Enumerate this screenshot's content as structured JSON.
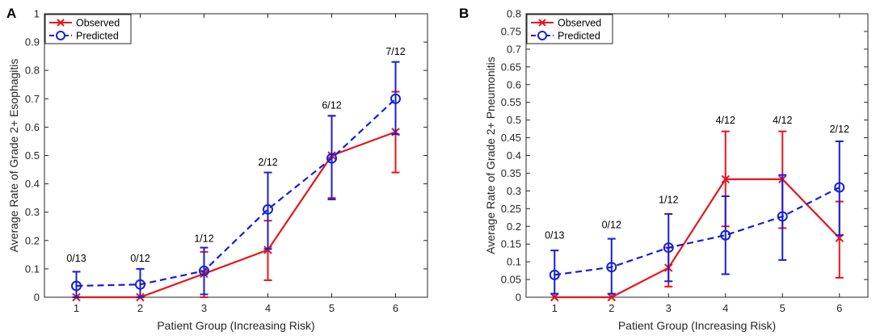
{
  "colors": {
    "observed": "#e8141c",
    "predicted": "#1420d8",
    "axis": "#262626",
    "background": "#ffffff"
  },
  "chart_data": [
    {
      "type": "line",
      "panel_label": "A",
      "xlabel": "Patient Group (Increasing Risk)",
      "ylabel": "Average Rate of Grade 2+ Esophagitis",
      "xlim": [
        0.5,
        6.5
      ],
      "ylim": [
        0,
        1
      ],
      "xticks": [
        1,
        2,
        3,
        4,
        5,
        6
      ],
      "yticks": [
        0,
        0.1,
        0.2,
        0.3,
        0.4,
        0.5,
        0.6,
        0.7,
        0.8,
        0.9,
        1
      ],
      "ytick_labels": [
        "0",
        "0.1",
        "0.2",
        "0.3",
        "0.4",
        "0.5",
        "0.6",
        "0.7",
        "0.8",
        "0.9",
        "1"
      ],
      "legend": {
        "position": "top-left",
        "entries": [
          "Observed",
          "Predicted"
        ]
      },
      "series": [
        {
          "name": "Observed",
          "marker": "x",
          "line": "solid",
          "x": [
            1,
            2,
            3,
            4,
            5,
            6
          ],
          "values": [
            0,
            0,
            0.083,
            0.167,
            0.5,
            0.583
          ],
          "err_low": [
            0,
            0,
            0,
            0.06,
            0.35,
            0.44
          ],
          "err_high": [
            0,
            0,
            0.16,
            0.27,
            0.64,
            0.725
          ]
        },
        {
          "name": "Predicted",
          "marker": "o",
          "line": "dashed",
          "x": [
            1,
            2,
            3,
            4,
            5,
            6
          ],
          "values": [
            0.04,
            0.045,
            0.093,
            0.31,
            0.49,
            0.7
          ],
          "err_low": [
            0,
            0,
            0.01,
            0.17,
            0.345,
            0.575
          ],
          "err_high": [
            0.09,
            0.1,
            0.175,
            0.44,
            0.64,
            0.83
          ]
        }
      ],
      "annotations": [
        {
          "x": 1,
          "y": 0.125,
          "text": "0/13"
        },
        {
          "x": 2,
          "y": 0.125,
          "text": "0/12"
        },
        {
          "x": 3,
          "y": 0.195,
          "text": "1/12"
        },
        {
          "x": 4,
          "y": 0.465,
          "text": "2/12"
        },
        {
          "x": 5,
          "y": 0.665,
          "text": "6/12"
        },
        {
          "x": 6,
          "y": 0.855,
          "text": "7/12"
        }
      ]
    },
    {
      "type": "line",
      "panel_label": "B",
      "xlabel": "Patient Group (Increasing Risk)",
      "ylabel": "Average Rate of Grade 2+ Pneumonitis",
      "xlim": [
        0.5,
        6.5
      ],
      "ylim": [
        0,
        0.8
      ],
      "xticks": [
        1,
        2,
        3,
        4,
        5,
        6
      ],
      "yticks": [
        0,
        0.05,
        0.1,
        0.15,
        0.2,
        0.25,
        0.3,
        0.35,
        0.4,
        0.45,
        0.5,
        0.55,
        0.6,
        0.65,
        0.7,
        0.75,
        0.8
      ],
      "ytick_labels": [
        "0",
        "0.05",
        "0.1",
        "0.15",
        "0.2",
        "0.25",
        "0.3",
        "0.35",
        "0.4",
        "0.45",
        "0.5",
        "0.55",
        "0.6",
        "0.65",
        "0.7",
        "0.75",
        "0.8"
      ],
      "legend": {
        "position": "top-left",
        "entries": [
          "Observed",
          "Predicted"
        ]
      },
      "series": [
        {
          "name": "Observed",
          "marker": "x",
          "line": "solid",
          "x": [
            1,
            2,
            3,
            4,
            5,
            6
          ],
          "values": [
            0,
            0,
            0.083,
            0.333,
            0.333,
            0.167
          ],
          "err_low": [
            0,
            0,
            0.03,
            0.2,
            0.195,
            0.055
          ],
          "err_high": [
            0,
            0,
            0.14,
            0.468,
            0.468,
            0.27
          ]
        },
        {
          "name": "Predicted",
          "marker": "o",
          "line": "dashed",
          "x": [
            1,
            2,
            3,
            4,
            5,
            6
          ],
          "values": [
            0.063,
            0.085,
            0.14,
            0.175,
            0.228,
            0.31
          ],
          "err_low": [
            0.01,
            0.01,
            0.045,
            0.065,
            0.105,
            0.175
          ],
          "err_high": [
            0.132,
            0.165,
            0.235,
            0.285,
            0.345,
            0.44
          ]
        }
      ],
      "annotations": [
        {
          "x": 1,
          "y": 0.165,
          "text": "0/13"
        },
        {
          "x": 2,
          "y": 0.195,
          "text": "0/12"
        },
        {
          "x": 3,
          "y": 0.265,
          "text": "1/12"
        },
        {
          "x": 4,
          "y": 0.49,
          "text": "4/12"
        },
        {
          "x": 5,
          "y": 0.49,
          "text": "4/12"
        },
        {
          "x": 6,
          "y": 0.465,
          "text": "2/12"
        }
      ]
    }
  ]
}
